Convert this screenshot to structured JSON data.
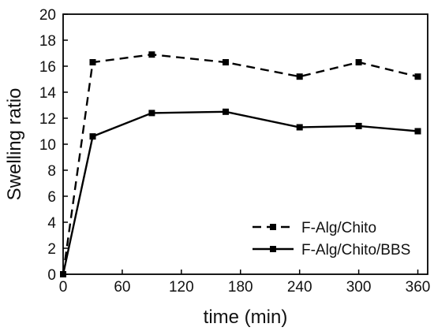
{
  "chart_data": {
    "type": "line",
    "title": "",
    "xlabel": "time (min)",
    "ylabel": "Swelling ratio",
    "xlim": [
      0,
      370
    ],
    "ylim": [
      0,
      20
    ],
    "xticks": [
      0,
      60,
      120,
      180,
      240,
      300,
      360
    ],
    "yticks": [
      0,
      2,
      4,
      6,
      8,
      10,
      12,
      14,
      16,
      18,
      20
    ],
    "grid": false,
    "legend_position": "bottom-right",
    "marker": "square",
    "series": [
      {
        "name": "F-Alg/Chito",
        "line_style": "dashed",
        "color": "#000000",
        "x": [
          0,
          30,
          90,
          165,
          240,
          300,
          360
        ],
        "y": [
          0,
          16.3,
          16.9,
          16.3,
          15.2,
          16.3,
          15.2
        ]
      },
      {
        "name": "F-Alg/Chito/BBS",
        "line_style": "solid",
        "color": "#000000",
        "x": [
          0,
          30,
          90,
          165,
          240,
          300,
          360
        ],
        "y": [
          0,
          10.6,
          12.4,
          12.5,
          11.3,
          11.4,
          11.0
        ]
      }
    ]
  }
}
